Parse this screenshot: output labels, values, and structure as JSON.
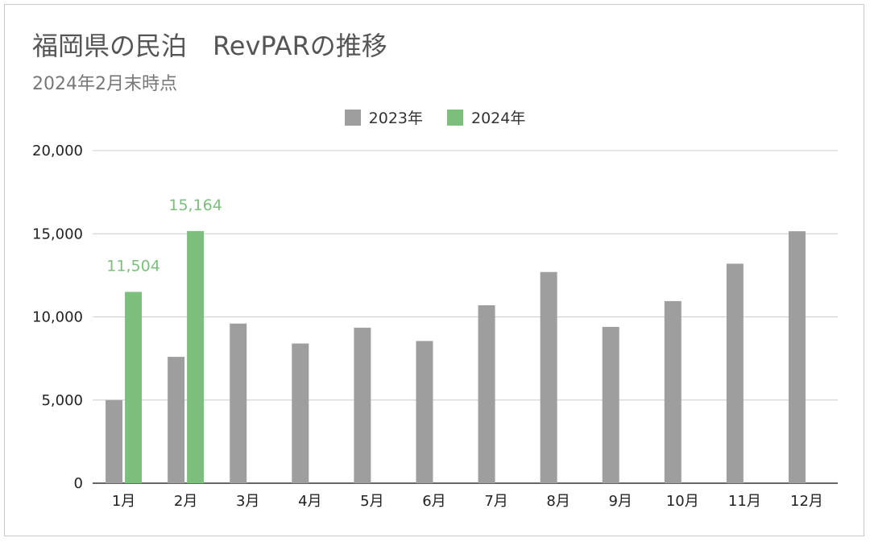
{
  "chart": {
    "title": "福岡県の民泊　RevPARの推移",
    "subtitle": "2024年2月末時点"
  },
  "colors": {
    "series_2023": "#9e9e9e",
    "series_2024": "#7cbf7c",
    "grid": "#cccccc",
    "axis": "#333333"
  },
  "chart_data": {
    "type": "bar",
    "categories": [
      "1月",
      "2月",
      "3月",
      "4月",
      "5月",
      "6月",
      "7月",
      "8月",
      "9月",
      "10月",
      "11月",
      "12月"
    ],
    "series": [
      {
        "name": "2023年",
        "values": [
          5000,
          7600,
          9600,
          8400,
          9350,
          8550,
          10700,
          12700,
          9400,
          10950,
          13200,
          15150
        ]
      },
      {
        "name": "2024年",
        "values": [
          11504,
          15164,
          null,
          null,
          null,
          null,
          null,
          null,
          null,
          null,
          null,
          null
        ]
      }
    ],
    "data_labels": {
      "2024年": [
        "11,504",
        "15,164"
      ]
    },
    "y_ticks": [
      "0",
      "5,000",
      "10,000",
      "15,000",
      "20,000"
    ],
    "ylim": [
      0,
      20000
    ],
    "grid": true,
    "legend": "top-center"
  }
}
